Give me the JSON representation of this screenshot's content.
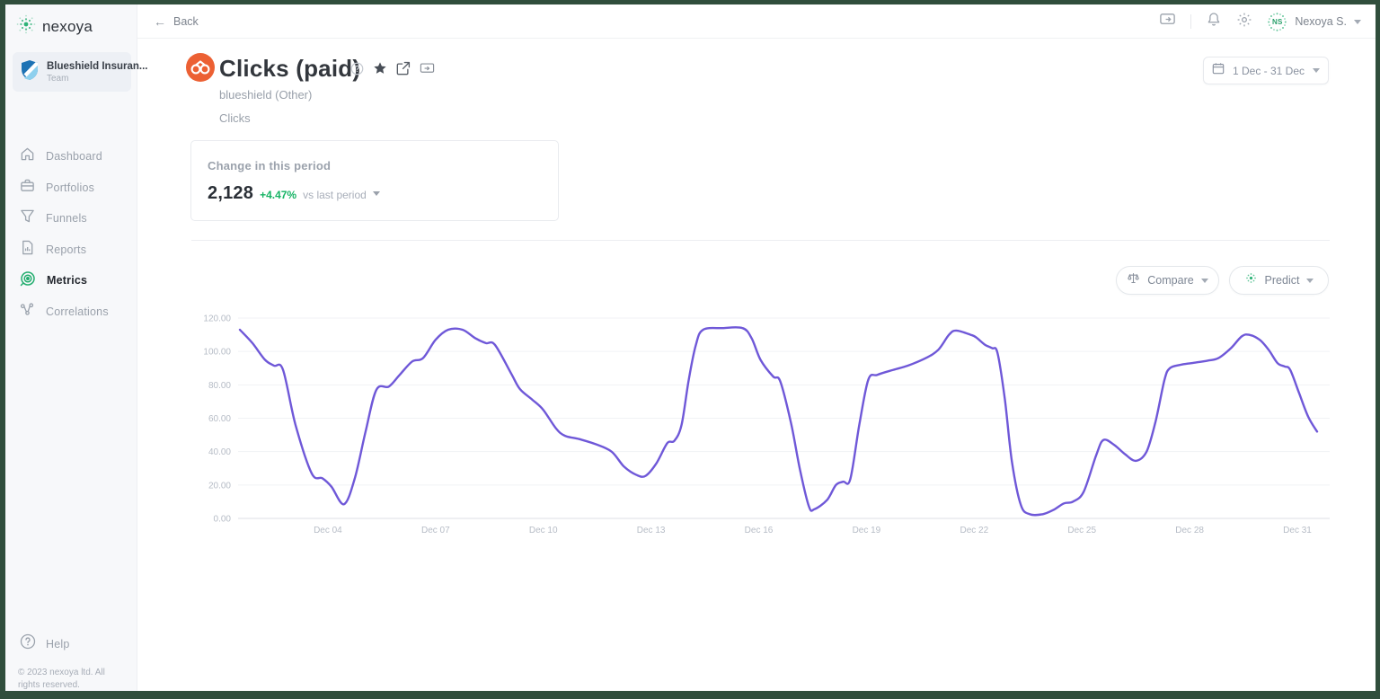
{
  "frame": {
    "border_color": "#304e3c"
  },
  "sidebar": {
    "logo_text": "nexoya",
    "team": {
      "name": "Blueshield Insuran...",
      "type": "Team"
    },
    "items": [
      {
        "label": "Dashboard",
        "icon": "home-icon",
        "active": false
      },
      {
        "label": "Portfolios",
        "icon": "briefcase-icon",
        "active": false
      },
      {
        "label": "Funnels",
        "icon": "funnel-icon",
        "active": false
      },
      {
        "label": "Reports",
        "icon": "report-icon",
        "active": false
      },
      {
        "label": "Metrics",
        "icon": "metrics-icon",
        "active": true
      },
      {
        "label": "Correlations",
        "icon": "correlations-icon",
        "active": false
      }
    ],
    "help_label": "Help",
    "copyright": "© 2023 nexoya ltd. All rights reserved."
  },
  "header": {
    "back_label": "Back",
    "user_name": "Nexoya S.",
    "avatar_initials": "NS"
  },
  "metric": {
    "title": "Clicks (paid)",
    "provider": "blueshield (Other)",
    "type": "Clicks"
  },
  "date_range": "1 Dec - 31 Dec",
  "change_card": {
    "label": "Change in this period",
    "value": "2,128",
    "delta": "+4.47%",
    "delta_color": "#16b364",
    "suffix": "vs last period"
  },
  "controls": {
    "compare_label": "Compare",
    "predict_label": "Predict"
  },
  "chart_data": {
    "type": "line",
    "title": "Clicks (paid) daily clicks, December",
    "series_name": "Clicks (paid)",
    "line_color": "#6f58d8",
    "grid": true,
    "legend": "none",
    "x_domain": [
      1.5,
      31.6
    ],
    "y_domain": [
      0,
      120
    ],
    "y_tick_values": [
      0,
      20,
      40,
      60,
      80,
      100,
      120
    ],
    "y_tick_labels": [
      "0.00",
      "20.00",
      "40.00",
      "60.00",
      "80.00",
      "100.00",
      "120.00"
    ],
    "x_ticks": [
      {
        "day": 4,
        "label": "Dec 04"
      },
      {
        "day": 7,
        "label": "Dec 07"
      },
      {
        "day": 10,
        "label": "Dec 10"
      },
      {
        "day": 13,
        "label": "Dec 13"
      },
      {
        "day": 16,
        "label": "Dec 16"
      },
      {
        "day": 19,
        "label": "Dec 19"
      },
      {
        "day": 22,
        "label": "Dec 22"
      },
      {
        "day": 25,
        "label": "Dec 25"
      },
      {
        "day": 28,
        "label": "Dec 28"
      },
      {
        "day": 31,
        "label": "Dec 31"
      }
    ],
    "points": [
      [
        1.55,
        113
      ],
      [
        1.9,
        105
      ],
      [
        2.25,
        95
      ],
      [
        2.5,
        91.5
      ],
      [
        2.75,
        89
      ],
      [
        3.1,
        56
      ],
      [
        3.55,
        27
      ],
      [
        3.85,
        24
      ],
      [
        4.1,
        19
      ],
      [
        4.45,
        8.5
      ],
      [
        4.75,
        24
      ],
      [
        5.05,
        52
      ],
      [
        5.35,
        77
      ],
      [
        5.7,
        79
      ],
      [
        6.0,
        86
      ],
      [
        6.35,
        94
      ],
      [
        6.65,
        96
      ],
      [
        7.0,
        107
      ],
      [
        7.35,
        113
      ],
      [
        7.75,
        113
      ],
      [
        8.1,
        108
      ],
      [
        8.4,
        105
      ],
      [
        8.65,
        104
      ],
      [
        9.1,
        87
      ],
      [
        9.35,
        77.5
      ],
      [
        9.7,
        71
      ],
      [
        10.0,
        65
      ],
      [
        10.35,
        54
      ],
      [
        10.6,
        49.5
      ],
      [
        11.0,
        47.5
      ],
      [
        11.45,
        44.5
      ],
      [
        11.9,
        40
      ],
      [
        12.25,
        31
      ],
      [
        12.6,
        26
      ],
      [
        12.85,
        25.5
      ],
      [
        13.15,
        33
      ],
      [
        13.45,
        45
      ],
      [
        13.65,
        46.5
      ],
      [
        13.85,
        56
      ],
      [
        14.05,
        83
      ],
      [
        14.25,
        104
      ],
      [
        14.45,
        113
      ],
      [
        15.0,
        114
      ],
      [
        15.55,
        114
      ],
      [
        15.8,
        108
      ],
      [
        16.05,
        95
      ],
      [
        16.4,
        85
      ],
      [
        16.6,
        82
      ],
      [
        16.9,
        57
      ],
      [
        17.15,
        29
      ],
      [
        17.4,
        7
      ],
      [
        17.55,
        5.5
      ],
      [
        17.9,
        11
      ],
      [
        18.15,
        20
      ],
      [
        18.35,
        22
      ],
      [
        18.55,
        23.5
      ],
      [
        18.8,
        56
      ],
      [
        19.05,
        83
      ],
      [
        19.3,
        86
      ],
      [
        19.75,
        89
      ],
      [
        20.15,
        91.5
      ],
      [
        20.65,
        96
      ],
      [
        21.0,
        101
      ],
      [
        21.3,
        110
      ],
      [
        21.5,
        112.5
      ],
      [
        21.9,
        110
      ],
      [
        22.05,
        108.5
      ],
      [
        22.3,
        104
      ],
      [
        22.5,
        102
      ],
      [
        22.65,
        99
      ],
      [
        22.85,
        72
      ],
      [
        23.05,
        34
      ],
      [
        23.3,
        8
      ],
      [
        23.55,
        2.5
      ],
      [
        23.9,
        2.5
      ],
      [
        24.2,
        5
      ],
      [
        24.5,
        9
      ],
      [
        24.75,
        10
      ],
      [
        25.05,
        16
      ],
      [
        25.4,
        38
      ],
      [
        25.6,
        47
      ],
      [
        25.9,
        44
      ],
      [
        26.2,
        38.5
      ],
      [
        26.5,
        34.5
      ],
      [
        26.8,
        40
      ],
      [
        27.05,
        58
      ],
      [
        27.3,
        83
      ],
      [
        27.45,
        90
      ],
      [
        27.75,
        92
      ],
      [
        28.05,
        93
      ],
      [
        28.5,
        94.5
      ],
      [
        28.8,
        96
      ],
      [
        29.15,
        102
      ],
      [
        29.45,
        109
      ],
      [
        29.65,
        110
      ],
      [
        29.95,
        107
      ],
      [
        30.2,
        101
      ],
      [
        30.45,
        93
      ],
      [
        30.65,
        91
      ],
      [
        30.8,
        89
      ],
      [
        31.05,
        75
      ],
      [
        31.3,
        61
      ],
      [
        31.55,
        52
      ]
    ]
  }
}
